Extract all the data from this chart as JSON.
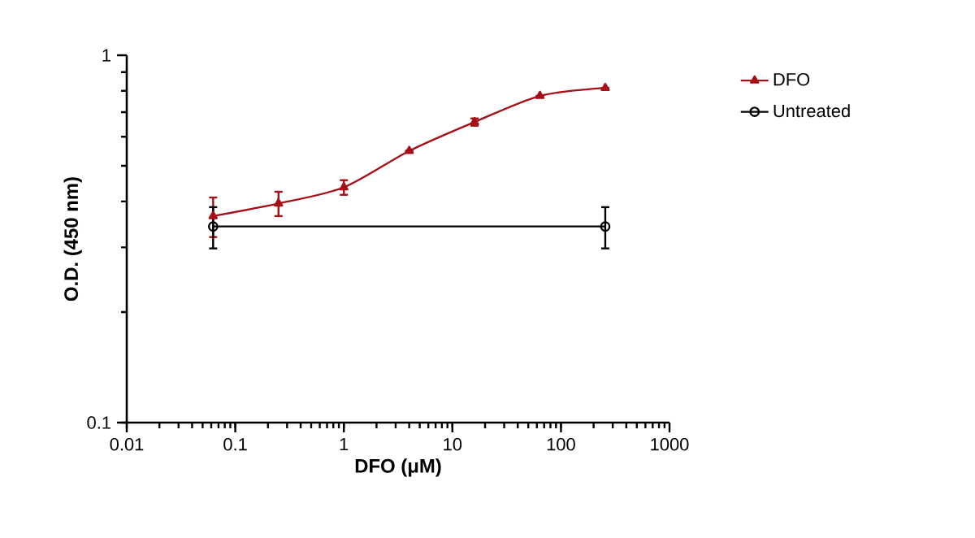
{
  "chart_data": {
    "type": "line",
    "xlabel": "DFO (μM)",
    "ylabel": "O.D. (450 nm)",
    "log": "xy",
    "xlim": [
      0.01,
      1000
    ],
    "xticks": [
      0.01,
      0.1,
      1,
      10,
      100,
      1000
    ],
    "ylim": [
      0.1,
      1
    ],
    "yticks": [
      0.1,
      1
    ],
    "grid": false,
    "legend": "right",
    "line_style": "solid",
    "series": [
      {
        "name": "DFO",
        "color": "#a50f15",
        "marker": "triangle",
        "x": [
          0.0625,
          0.25,
          1,
          4,
          16,
          64,
          256
        ],
        "values": [
          0.365,
          0.395,
          0.437,
          0.549,
          0.658,
          0.775,
          0.815
        ],
        "errors": [
          0.045,
          0.03,
          0.02,
          null,
          0.015,
          null,
          null
        ]
      },
      {
        "name": "Untreated",
        "color": "#000000",
        "marker": "circle",
        "x": [
          0.0625,
          256
        ],
        "values": [
          0.342,
          0.342
        ],
        "errors": [
          0.044,
          0.044
        ]
      }
    ]
  }
}
